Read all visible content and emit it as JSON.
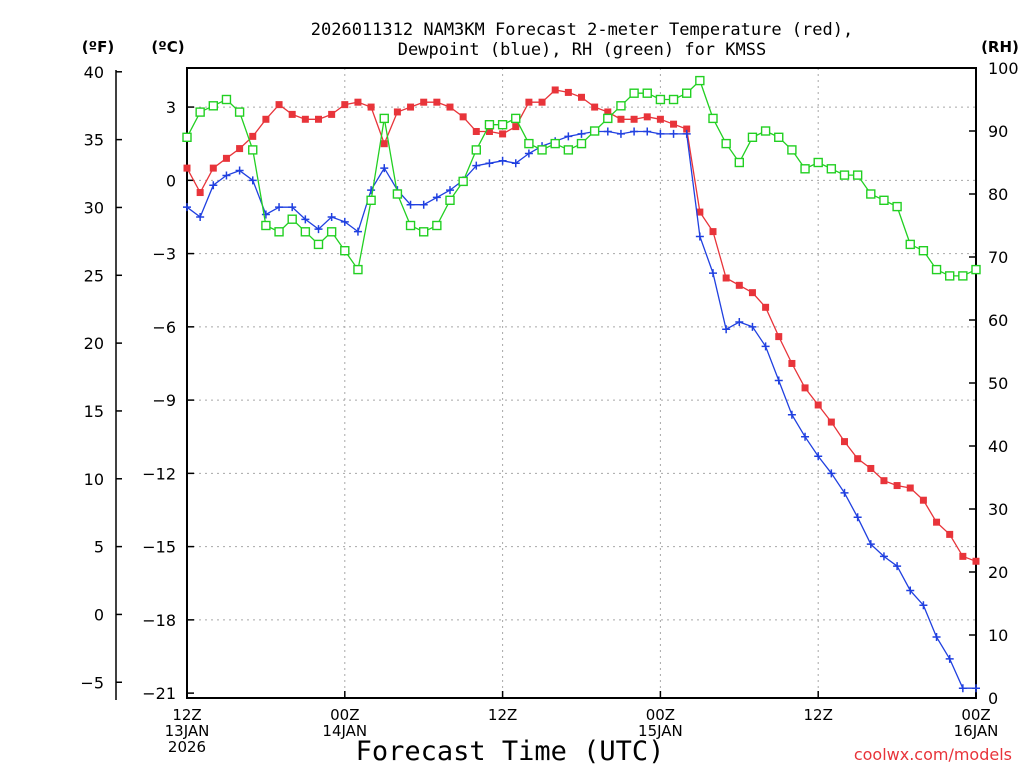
{
  "chart_data": {
    "type": "line",
    "title_line1": "2026011312 NAM3KM Forecast 2-meter Temperature (red),",
    "title_line2": "Dewpoint (blue), RH (green) for KMSS",
    "xlabel": "Forecast Time (UTC)",
    "credit": "coolwx.com/models",
    "axis_units": {
      "fahrenheit": "(ºF)",
      "celsius": "(ºC)",
      "rh": "(RH)"
    },
    "x_range_hours": [
      0,
      60
    ],
    "x_ticks": [
      {
        "hour": 0,
        "lines": [
          "12Z",
          "13JAN",
          "2026"
        ]
      },
      {
        "hour": 12,
        "lines": [
          "00Z",
          "14JAN"
        ]
      },
      {
        "hour": 24,
        "lines": [
          "12Z"
        ]
      },
      {
        "hour": 36,
        "lines": [
          "00Z",
          "15JAN"
        ]
      },
      {
        "hour": 48,
        "lines": [
          "12Z"
        ]
      },
      {
        "hour": 60,
        "lines": [
          "00Z",
          "16JAN"
        ]
      }
    ],
    "celsius_axis": {
      "range": [
        -21.2,
        4.6
      ],
      "ticks": [
        "3",
        "0",
        "−3",
        "−6",
        "−9",
        "−12",
        "−15",
        "−18",
        "−21"
      ],
      "tick_values": [
        3,
        0,
        -3,
        -6,
        -9,
        -12,
        -15,
        -18,
        -21
      ]
    },
    "fahrenheit_axis": {
      "range": [
        -6.16,
        40.28
      ],
      "ticks": [
        "40",
        "35",
        "30",
        "25",
        "20",
        "15",
        "10",
        "5",
        "0",
        "−5"
      ],
      "tick_values": [
        40,
        35,
        30,
        25,
        20,
        15,
        10,
        5,
        0,
        -5
      ]
    },
    "rh_axis": {
      "range": [
        0,
        100
      ],
      "ticks": [
        "100",
        "90",
        "80",
        "70",
        "60",
        "50",
        "40",
        "30",
        "20",
        "10",
        "0"
      ],
      "tick_values": [
        100,
        90,
        80,
        70,
        60,
        50,
        40,
        30,
        20,
        10,
        0
      ]
    },
    "series": [
      {
        "name": "Temperature",
        "units": "C",
        "color": "#e8343a",
        "marker": "filled-square",
        "x": [
          0,
          1,
          2,
          3,
          4,
          5,
          6,
          7,
          8,
          9,
          10,
          11,
          12,
          13,
          14,
          15,
          16,
          17,
          18,
          19,
          20,
          21,
          22,
          23,
          24,
          25,
          26,
          27,
          28,
          29,
          30,
          31,
          32,
          33,
          34,
          35,
          36,
          37,
          38,
          39,
          40,
          41,
          42,
          43,
          44,
          45,
          46,
          47,
          48,
          49,
          50,
          51,
          52,
          53,
          54,
          55,
          56,
          57,
          58,
          59,
          60
        ],
        "values": [
          0.5,
          -0.5,
          0.5,
          0.9,
          1.3,
          1.8,
          2.5,
          3.1,
          2.7,
          2.5,
          2.5,
          2.7,
          3.1,
          3.2,
          3.0,
          1.5,
          2.8,
          3.0,
          3.2,
          3.2,
          3.0,
          2.6,
          2.0,
          2.0,
          1.9,
          2.2,
          3.2,
          3.2,
          3.7,
          3.6,
          3.4,
          3.0,
          2.8,
          2.5,
          2.5,
          2.6,
          2.5,
          2.3,
          2.1,
          -1.3,
          -2.1,
          -4.0,
          -4.3,
          -4.6,
          -5.2,
          -6.4,
          -7.5,
          -8.5,
          -9.2,
          -9.9,
          -10.7,
          -11.4,
          -11.8,
          -12.3,
          -12.5,
          -12.6,
          -13.1,
          -14.0,
          -14.5,
          -15.4,
          -15.6
        ]
      },
      {
        "name": "Dewpoint",
        "units": "C",
        "color": "#2040e0",
        "marker": "plus",
        "x": [
          0,
          1,
          2,
          3,
          4,
          5,
          6,
          7,
          8,
          9,
          10,
          11,
          12,
          13,
          14,
          15,
          16,
          17,
          18,
          19,
          20,
          21,
          22,
          23,
          24,
          25,
          26,
          27,
          28,
          29,
          30,
          31,
          32,
          33,
          34,
          35,
          36,
          37,
          38,
          39,
          40,
          41,
          42,
          43,
          44,
          45,
          46,
          47,
          48,
          49,
          50,
          51,
          52,
          53,
          54,
          55,
          56,
          57,
          58,
          59,
          60
        ],
        "values": [
          -1.1,
          -1.5,
          -0.2,
          0.2,
          0.4,
          0.0,
          -1.4,
          -1.1,
          -1.1,
          -1.6,
          -2.0,
          -1.5,
          -1.7,
          -2.1,
          -0.4,
          0.5,
          -0.4,
          -1.0,
          -1.0,
          -0.7,
          -0.4,
          0.0,
          0.6,
          0.7,
          0.8,
          0.7,
          1.1,
          1.4,
          1.6,
          1.8,
          1.9,
          2.0,
          2.0,
          1.9,
          2.0,
          2.0,
          1.9,
          1.9,
          1.9,
          -2.3,
          -3.8,
          -6.1,
          -5.8,
          -6.0,
          -6.8,
          -8.2,
          -9.6,
          -10.5,
          -11.3,
          -12.0,
          -12.8,
          -13.8,
          -14.9,
          -15.4,
          -15.8,
          -16.8,
          -17.4,
          -18.7,
          -19.6,
          -20.8,
          -20.8
        ]
      },
      {
        "name": "Relative Humidity",
        "units": "%",
        "color": "#22d022",
        "marker": "open-square",
        "x": [
          0,
          1,
          2,
          3,
          4,
          5,
          6,
          7,
          8,
          9,
          10,
          11,
          12,
          13,
          14,
          15,
          16,
          17,
          18,
          19,
          20,
          21,
          22,
          23,
          24,
          25,
          26,
          27,
          28,
          29,
          30,
          31,
          32,
          33,
          34,
          35,
          36,
          37,
          38,
          39,
          40,
          41,
          42,
          43,
          44,
          45,
          46,
          47,
          48,
          49,
          50,
          51,
          52,
          53,
          54,
          55,
          56,
          57,
          58,
          59,
          60
        ],
        "values": [
          89,
          93,
          94,
          95,
          93,
          87,
          75,
          74,
          76,
          74,
          72,
          74,
          71,
          68,
          79,
          92,
          80,
          75,
          74,
          75,
          79,
          82,
          87,
          91,
          91,
          92,
          88,
          87,
          88,
          87,
          88,
          90,
          92,
          94,
          96,
          96,
          95,
          95,
          96,
          98,
          92,
          88,
          85,
          89,
          90,
          89,
          87,
          84,
          85,
          84,
          83,
          83,
          80,
          79,
          78,
          72,
          71,
          68,
          67,
          67,
          68
        ]
      }
    ]
  }
}
